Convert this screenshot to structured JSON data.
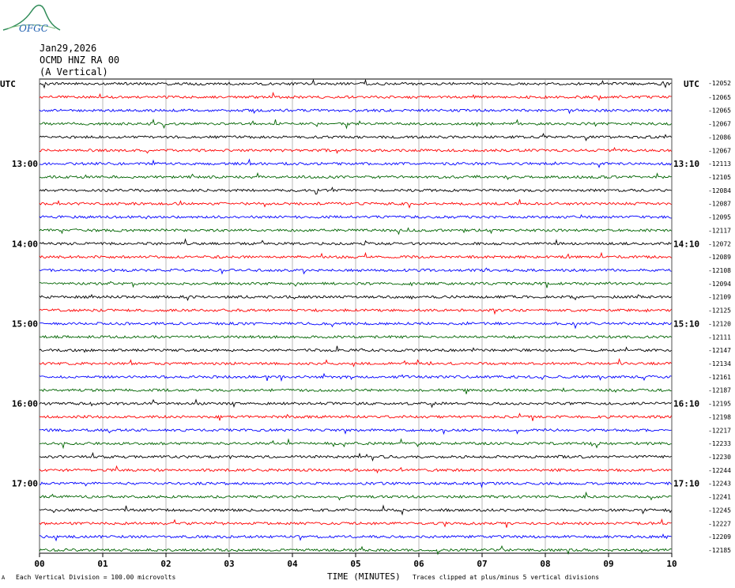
{
  "logo": {
    "text": "OFGC"
  },
  "header": {
    "date": "Jan29,2026",
    "station": "OCMD HNZ RA 00",
    "component": "(A Vertical)"
  },
  "labels": {
    "utc_left": "UTC",
    "utc_right": "UTC",
    "top_right_value": "-12052",
    "xlabel": "TIME (MINUTES)",
    "scale_note": "Each Vertical Division =  100.00 microvolts",
    "clip_note": "Traces clipped at plus/minus 5 vertical divisions",
    "corner_mark": "A"
  },
  "chart_data": {
    "type": "line",
    "xlabel": "TIME (MINUTES)",
    "xlim": [
      0,
      10
    ],
    "x_ticks": [
      "00",
      "01",
      "02",
      "03",
      "04",
      "05",
      "06",
      "07",
      "08",
      "09",
      "10"
    ],
    "trace_colors": [
      "#000000",
      "#ff0000",
      "#0000ff",
      "#006400"
    ],
    "hour_labels_left": [
      "13:00",
      "14:00",
      "15:00",
      "16:00",
      "17:00"
    ],
    "hour_labels_right": [
      "13:10",
      "14:10",
      "15:10",
      "16:10",
      "17:10"
    ],
    "hour_label_rows": [
      6,
      12,
      18,
      24,
      30
    ],
    "trace_offsets": [
      "-12065",
      "-12065",
      "-12067",
      "-12086",
      "-12067",
      "-12113",
      "-12105",
      "-12084",
      "-12087",
      "-12095",
      "-12117",
      "-12072",
      "-12089",
      "-12108",
      "-12094",
      "-12109",
      "-12125",
      "-12120",
      "-12111",
      "-12147",
      "-12134",
      "-12161",
      "-12187",
      "-12195",
      "-12198",
      "-12217",
      "-12233",
      "-12230",
      "-12244",
      "-12243",
      "-12241",
      "-12245",
      "-12227",
      "-12209",
      "-12185"
    ]
  }
}
